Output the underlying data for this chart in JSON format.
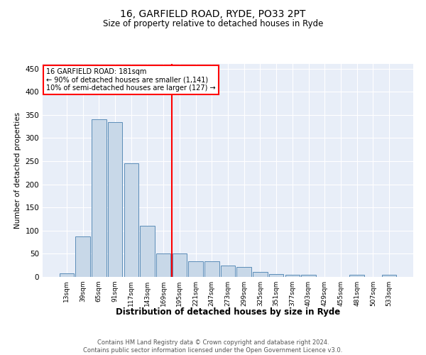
{
  "title_line1": "16, GARFIELD ROAD, RYDE, PO33 2PT",
  "title_line2": "Size of property relative to detached houses in Ryde",
  "xlabel": "Distribution of detached houses by size in Ryde",
  "ylabel": "Number of detached properties",
  "bar_labels": [
    "13sqm",
    "39sqm",
    "65sqm",
    "91sqm",
    "117sqm",
    "143sqm",
    "169sqm",
    "195sqm",
    "221sqm",
    "247sqm",
    "273sqm",
    "299sqm",
    "325sqm",
    "351sqm",
    "377sqm",
    "403sqm",
    "429sqm",
    "455sqm",
    "481sqm",
    "507sqm",
    "533sqm"
  ],
  "bar_values": [
    7,
    88,
    340,
    335,
    245,
    110,
    50,
    50,
    33,
    33,
    25,
    22,
    10,
    6,
    5,
    5,
    0,
    0,
    4,
    0,
    4
  ],
  "bar_color": "#c8d8e8",
  "bar_edge_color": "#5b8db8",
  "red_line_index": 6.5,
  "annotation_title": "16 GARFIELD ROAD: 181sqm",
  "annotation_line2": "← 90% of detached houses are smaller (1,141)",
  "annotation_line3": "10% of semi-detached houses are larger (127) →",
  "ylim": [
    0,
    460
  ],
  "yticks": [
    0,
    50,
    100,
    150,
    200,
    250,
    300,
    350,
    400,
    450
  ],
  "background_color": "#e8eef8",
  "footnote_line1": "Contains HM Land Registry data © Crown copyright and database right 2024.",
  "footnote_line2": "Contains public sector information licensed under the Open Government Licence v3.0."
}
